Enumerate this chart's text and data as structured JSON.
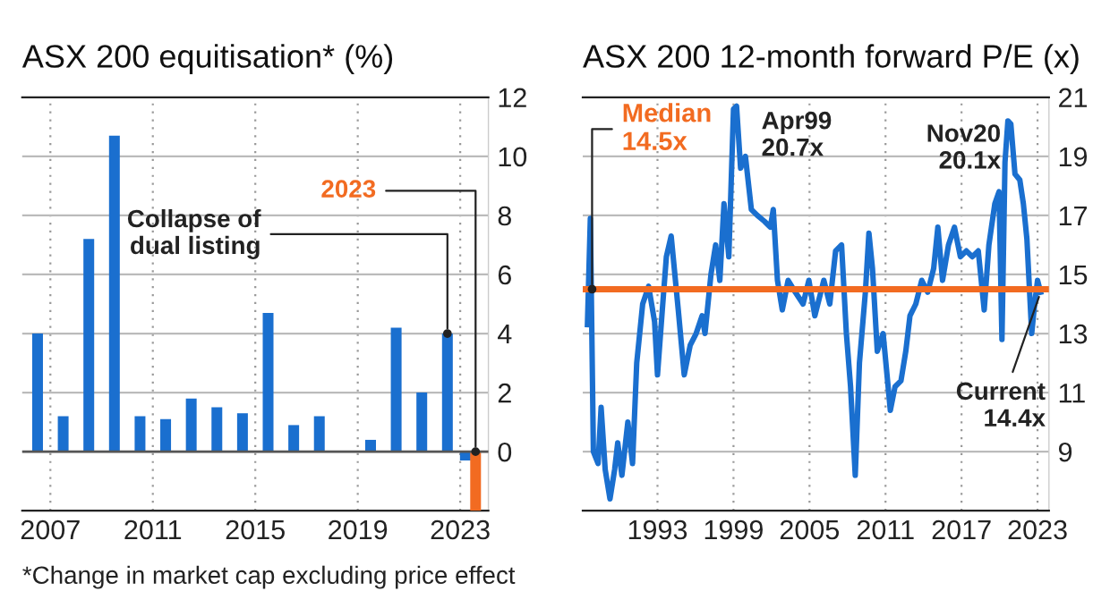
{
  "chart_data": [
    {
      "type": "bar",
      "title": "ASX 200 equitisation* (%)",
      "xlim": [
        2005.9,
        2024.1
      ],
      "xticks": [
        2007,
        2011,
        2015,
        2019,
        2023
      ],
      "ylim": [
        -2,
        12
      ],
      "yticks": [
        0,
        2,
        4,
        6,
        8,
        10,
        12
      ],
      "grid": true,
      "legend": false,
      "series": [
        {
          "color": "#1a6fcf",
          "x": [
            2006.5,
            2007.5,
            2008.5,
            2009.5,
            2010.5,
            2011.5,
            2012.5,
            2013.5,
            2014.5,
            2015.5,
            2016.5,
            2017.5,
            2018.5,
            2019.5,
            2020.5,
            2021.5,
            2022.5,
            2023.2
          ],
          "values": [
            4.0,
            1.2,
            7.2,
            10.7,
            1.2,
            1.1,
            1.8,
            1.5,
            1.3,
            4.7,
            0.9,
            1.2,
            null,
            0.4,
            4.2,
            2.0,
            4.0,
            -0.3
          ]
        },
        {
          "color": "#f26b21",
          "x": [
            2023.6
          ],
          "values": [
            -2.0
          ]
        }
      ],
      "annotations": [
        {
          "text": "2023",
          "x": 2023.6,
          "y": 0
        },
        {
          "text": "Collapse of\ndual listing",
          "x": 2022.5,
          "y": 4.0
        },
        "*Change in market cap excluding price effect"
      ]
    },
    {
      "type": "line",
      "title": "ASX 200 12-month forward P/E (x)",
      "xlim": [
        1987.1,
        2023.9
      ],
      "xticks": [
        1993,
        1999,
        2005,
        2011,
        2017,
        2023
      ],
      "ylim": [
        7,
        21
      ],
      "yticks": [
        9,
        11,
        13,
        15,
        17,
        19,
        21
      ],
      "grid": true,
      "legend": false,
      "marker": "none",
      "line_style": "solid",
      "series": [
        {
          "color": "#1a6fcf",
          "x": [
            1987.47,
            1987.7,
            1987.94,
            1988.31,
            1988.55,
            1988.87,
            1989.25,
            1989.62,
            1989.86,
            1990.19,
            1990.66,
            1991.03,
            1991.36,
            1991.83,
            1992.3,
            1992.77,
            1993.0,
            1993.38,
            1993.7,
            1994.08,
            1994.64,
            1995.11,
            1995.58,
            1996.05,
            1996.52,
            1996.75,
            1997.22,
            1997.59,
            1997.92,
            1998.25,
            1998.63,
            1999.0,
            1999.24,
            1999.56,
            1999.94,
            2000.41,
            2000.88,
            2001.44,
            2001.91,
            2002.14,
            2002.47,
            2002.85,
            2003.31,
            2003.88,
            2004.49,
            2004.95,
            2005.42,
            2006.13,
            2006.6,
            2007.06,
            2007.53,
            2007.91,
            2008.24,
            2008.61,
            2008.94,
            2009.41,
            2009.69,
            2009.97,
            2010.35,
            2010.81,
            2011.38,
            2011.75,
            2012.22,
            2012.6,
            2012.93,
            2013.39,
            2013.86,
            2014.33,
            2014.8,
            2015.13,
            2015.5,
            2015.97,
            2016.44,
            2016.91,
            2017.38,
            2017.85,
            2018.32,
            2018.79,
            2019.16,
            2019.63,
            2019.96,
            2020.19,
            2020.43,
            2020.66,
            2020.89,
            2021.22,
            2021.6,
            2021.88,
            2022.16,
            2022.54,
            2022.77,
            2023.0,
            2023.24
          ],
          "values": [
            13.3,
            16.9,
            9.0,
            8.6,
            10.5,
            8.4,
            7.4,
            8.4,
            9.3,
            8.2,
            10.0,
            8.6,
            12.0,
            14.0,
            14.6,
            13.4,
            11.6,
            13.8,
            15.6,
            16.3,
            13.8,
            11.6,
            12.6,
            13.0,
            13.6,
            13.0,
            15.0,
            16.0,
            14.8,
            17.4,
            15.6,
            20.6,
            20.7,
            18.6,
            19.0,
            17.2,
            17.0,
            16.8,
            16.6,
            17.2,
            14.8,
            13.8,
            14.8,
            14.4,
            14.0,
            14.8,
            13.6,
            14.8,
            14.0,
            15.8,
            16.0,
            13.0,
            11.2,
            8.2,
            12.0,
            14.4,
            16.4,
            15.2,
            12.4,
            13.0,
            10.4,
            11.2,
            11.4,
            12.4,
            13.6,
            14.0,
            14.8,
            14.4,
            15.2,
            16.6,
            14.8,
            16.0,
            16.6,
            15.6,
            15.8,
            15.6,
            15.8,
            13.8,
            16.0,
            17.4,
            17.8,
            12.8,
            18.8,
            20.2,
            20.1,
            18.4,
            18.2,
            17.4,
            16.2,
            13.0,
            14.0,
            14.8,
            14.4
          ]
        }
      ],
      "ref_lines": [
        {
          "axis": "y",
          "value": 14.5,
          "label": "Median\n14.5x",
          "color": "#f26b21"
        }
      ],
      "annotations": [
        {
          "text": "Apr99\n20.7x",
          "x": 1999.24,
          "y": 20.7
        },
        {
          "text": "Nov20\n20.1x",
          "x": 2020.89,
          "y": 20.1
        },
        {
          "text": "Current\n14.4x",
          "x": 2023.24,
          "y": 14.4
        }
      ]
    }
  ]
}
